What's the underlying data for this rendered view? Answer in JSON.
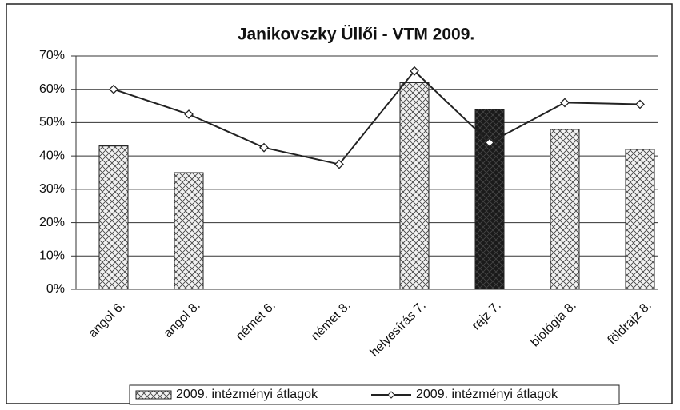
{
  "chart_data": {
    "type": "bar",
    "title": "Janikovszky Üllői - VTM 2009.",
    "categories": [
      "angol 6.",
      "angol 8.",
      "német 6.",
      "német 8.",
      "helyesírás 7.",
      "rajz 7.",
      "biológia 8.",
      "földrajz 8."
    ],
    "series": [
      {
        "name": "2009. intézményi átlagok",
        "type": "bar",
        "pattern": "crosshatch",
        "colors": [
          "#f2f2f2",
          "#f2f2f2",
          "#f2f2f2",
          "#f2f2f2",
          "#f2f2f2",
          "#1a1a1a",
          "#f2f2f2",
          "#f2f2f2"
        ],
        "values": [
          43,
          35,
          null,
          null,
          62,
          54,
          48,
          42
        ]
      },
      {
        "name": "2009. intézményi átlagok",
        "type": "line",
        "color": "#222222",
        "marker": "diamond",
        "values": [
          60,
          52.5,
          42.5,
          37.5,
          65.5,
          44,
          56,
          55.5
        ]
      }
    ],
    "ylim": [
      0,
      70
    ],
    "yticks": [
      {
        "value": 0,
        "label": "0%"
      },
      {
        "value": 10,
        "label": "10%"
      },
      {
        "value": 20,
        "label": "20%"
      },
      {
        "value": 30,
        "label": "30%"
      },
      {
        "value": 40,
        "label": "40%"
      },
      {
        "value": 50,
        "label": "50%"
      },
      {
        "value": 60,
        "label": "60%"
      },
      {
        "value": 70,
        "label": "70%"
      }
    ],
    "grid": true,
    "legend": "bottom"
  }
}
